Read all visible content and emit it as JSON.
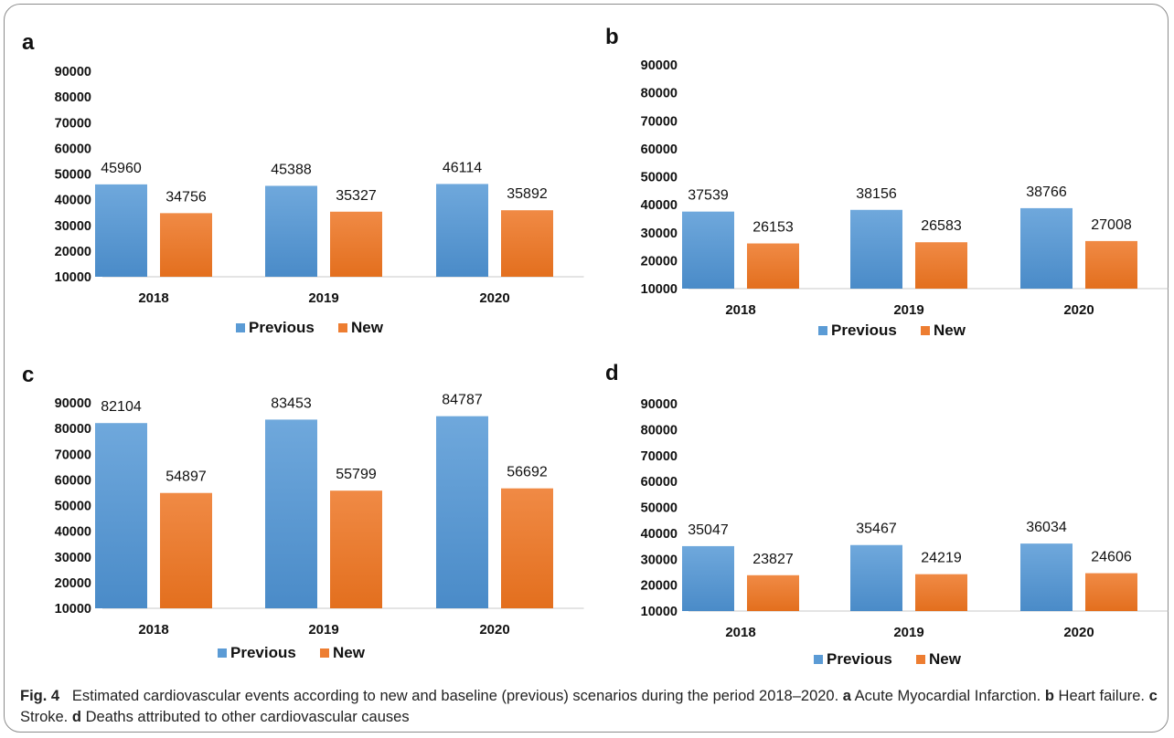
{
  "chart_data": [
    {
      "type": "bar",
      "panel_label": "a",
      "categories": [
        "2018",
        "2019",
        "2020"
      ],
      "series": [
        {
          "name": "Previous",
          "values": [
            45960,
            45388,
            46114
          ]
        },
        {
          "name": "New",
          "values": [
            34756,
            35327,
            35892
          ]
        }
      ],
      "yticks": [
        10000,
        20000,
        30000,
        40000,
        50000,
        60000,
        70000,
        80000,
        90000
      ],
      "ylim": [
        10000,
        90000
      ],
      "grid": false,
      "legend": "bottom-center"
    },
    {
      "type": "bar",
      "panel_label": "b",
      "categories": [
        "2018",
        "2019",
        "2020"
      ],
      "series": [
        {
          "name": "Previous",
          "values": [
            37539,
            38156,
            38766
          ]
        },
        {
          "name": "New",
          "values": [
            26153,
            26583,
            27008
          ]
        }
      ],
      "yticks": [
        10000,
        20000,
        30000,
        40000,
        50000,
        60000,
        70000,
        80000,
        90000
      ],
      "ylim": [
        10000,
        90000
      ],
      "grid": false,
      "legend": "bottom-center"
    },
    {
      "type": "bar",
      "panel_label": "c",
      "categories": [
        "2018",
        "2019",
        "2020"
      ],
      "series": [
        {
          "name": "Previous",
          "values": [
            82104,
            83453,
            84787
          ]
        },
        {
          "name": "New",
          "values": [
            54897,
            55799,
            56692
          ]
        }
      ],
      "yticks": [
        10000,
        20000,
        30000,
        40000,
        50000,
        60000,
        70000,
        80000,
        90000
      ],
      "ylim": [
        10000,
        90000
      ],
      "grid": false,
      "legend": "bottom-center"
    },
    {
      "type": "bar",
      "panel_label": "d",
      "categories": [
        "2018",
        "2019",
        "2020"
      ],
      "series": [
        {
          "name": "Previous",
          "values": [
            35047,
            35467,
            36034
          ]
        },
        {
          "name": "New",
          "values": [
            23827,
            24219,
            24606
          ]
        }
      ],
      "yticks": [
        10000,
        20000,
        30000,
        40000,
        50000,
        60000,
        70000,
        80000,
        90000
      ],
      "ylim": [
        10000,
        90000
      ],
      "grid": false,
      "legend": "bottom-center"
    }
  ],
  "colors": {
    "previous": "#5b9bd5",
    "new": "#ed7d31"
  },
  "caption": {
    "label": "Fig. 4",
    "text": "Estimated cardiovascular events according to new and baseline (previous) scenarios during the period 2018–2020.",
    "parts": [
      {
        "key": "a",
        "text": "Acute Myocardial Infarction."
      },
      {
        "key": "b",
        "text": "Heart failure."
      },
      {
        "key": "c",
        "text": "Stroke."
      },
      {
        "key": "d",
        "text": "Deaths attributed to other cardiovascular causes"
      }
    ]
  }
}
